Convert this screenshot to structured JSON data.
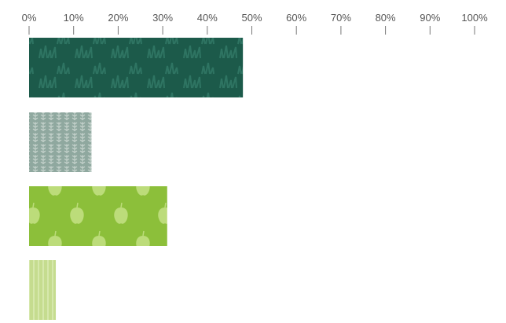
{
  "chart_data": {
    "type": "bar",
    "orientation": "horizontal",
    "title": "",
    "xlabel": "",
    "ylabel": "",
    "xlim": [
      0,
      100
    ],
    "x_ticks": [
      0,
      10,
      20,
      30,
      40,
      50,
      60,
      70,
      80,
      90,
      100
    ],
    "x_tick_labels": [
      "0%",
      "10%",
      "20%",
      "30%",
      "40%",
      "50%",
      "60%",
      "70%",
      "80%",
      "90%",
      "100%"
    ],
    "axis_position": "top",
    "grid": false,
    "legend": "none",
    "categories": [
      "",
      "",
      "",
      ""
    ],
    "values": [
      48,
      14,
      31,
      6
    ],
    "bar_styles": [
      {
        "color": "#1c5a4a",
        "pattern": "grass"
      },
      {
        "color": "#8fa89f",
        "pattern": "wheat"
      },
      {
        "color": "#8cbf3a",
        "pattern": "apples"
      },
      {
        "color": "#c5dc8f",
        "pattern": "stripes"
      }
    ]
  }
}
